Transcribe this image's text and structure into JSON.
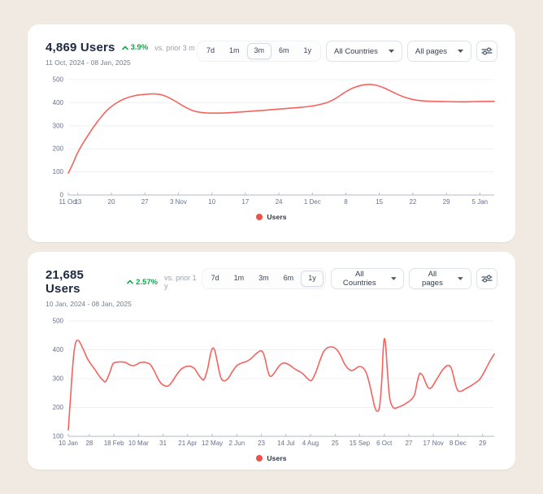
{
  "page": {
    "background": "#f0eae3"
  },
  "colors": {
    "line": "#f4635e",
    "legend_dot": "#f0504b",
    "positive": "#17a24c",
    "axis": "#b3bac6",
    "grid": "#eef0f4",
    "tick_text": "#66708a"
  },
  "cards": [
    {
      "title": "4,869 Users",
      "change": "3.9%",
      "trend": "up",
      "compare_label": "vs. prior 3 m",
      "date_range": "11 Oct, 2024 - 08 Jan, 2025",
      "range_buttons": [
        "7d",
        "1m",
        "3m",
        "6m",
        "1y"
      ],
      "selected_range": "3m",
      "country_filter": "All Countries",
      "page_filter": "All pages",
      "legend": "Users",
      "chart_data": {
        "type": "line",
        "title": "",
        "xlabel": "",
        "ylabel": "",
        "grid": "horizontal",
        "legend_position": "bottom",
        "ylim": [
          0,
          500
        ],
        "y_ticks": [
          0,
          100,
          200,
          300,
          400,
          500
        ],
        "xlim": [
          0,
          89
        ],
        "x_ticks": [
          {
            "label": "11 Oct",
            "x": 0
          },
          {
            "label": "13",
            "x": 2
          },
          {
            "label": "20",
            "x": 9
          },
          {
            "label": "27",
            "x": 16
          },
          {
            "label": "3 Nov",
            "x": 23
          },
          {
            "label": "10",
            "x": 30
          },
          {
            "label": "17",
            "x": 37
          },
          {
            "label": "24",
            "x": 44
          },
          {
            "label": "1 Dec",
            "x": 51
          },
          {
            "label": "8",
            "x": 58
          },
          {
            "label": "15",
            "x": 65
          },
          {
            "label": "22",
            "x": 72
          },
          {
            "label": "29",
            "x": 79
          },
          {
            "label": "5 Jan",
            "x": 86
          }
        ],
        "series": [
          {
            "name": "Users",
            "points": [
              [
                0,
                95
              ],
              [
                1,
                138
              ],
              [
                2,
                185
              ],
              [
                4,
                255
              ],
              [
                6,
                315
              ],
              [
                8,
                365
              ],
              [
                10,
                398
              ],
              [
                12,
                419
              ],
              [
                14,
                431
              ],
              [
                16,
                436
              ],
              [
                18,
                438
              ],
              [
                20,
                431
              ],
              [
                22,
                411
              ],
              [
                24,
                386
              ],
              [
                26,
                366
              ],
              [
                28,
                357
              ],
              [
                30,
                355
              ],
              [
                33,
                356
              ],
              [
                36,
                360
              ],
              [
                39,
                364
              ],
              [
                42,
                369
              ],
              [
                45,
                374
              ],
              [
                48,
                379
              ],
              [
                51,
                386
              ],
              [
                54,
                400
              ],
              [
                56,
                420
              ],
              [
                58,
                448
              ],
              [
                60,
                468
              ],
              [
                62,
                478
              ],
              [
                64,
                477
              ],
              [
                66,
                464
              ],
              [
                68,
                444
              ],
              [
                70,
                426
              ],
              [
                72,
                414
              ],
              [
                74,
                408
              ],
              [
                76,
                406
              ],
              [
                79,
                405
              ],
              [
                82,
                404
              ],
              [
                85,
                405
              ],
              [
                89,
                406
              ]
            ]
          }
        ]
      }
    },
    {
      "title": "21,685 Users",
      "change": "2.57%",
      "trend": "up",
      "compare_label": "vs. prior 1 y",
      "date_range": "10 Jan, 2024 - 08 Jan, 2025",
      "range_buttons": [
        "7d",
        "1m",
        "3m",
        "6m",
        "1y"
      ],
      "selected_range": "1y",
      "country_filter": "All Countries",
      "page_filter": "All pages",
      "legend": "Users",
      "chart_data": {
        "type": "line",
        "title": "",
        "xlabel": "",
        "ylabel": "",
        "grid": "horizontal",
        "legend_position": "bottom",
        "ylim": [
          100,
          500
        ],
        "y_ticks": [
          100,
          200,
          300,
          400,
          500
        ],
        "xlim": [
          0,
          364
        ],
        "x_ticks": [
          {
            "label": "10 Jan",
            "x": 0
          },
          {
            "label": "28",
            "x": 18
          },
          {
            "label": "18 Feb",
            "x": 39
          },
          {
            "label": "10 Mar",
            "x": 60
          },
          {
            "label": "31",
            "x": 81
          },
          {
            "label": "21 Apr",
            "x": 102
          },
          {
            "label": "12 May",
            "x": 123
          },
          {
            "label": "2 Jun",
            "x": 144
          },
          {
            "label": "23",
            "x": 165
          },
          {
            "label": "14 Jul",
            "x": 186
          },
          {
            "label": "4 Aug",
            "x": 207
          },
          {
            "label": "25",
            "x": 228
          },
          {
            "label": "15 Sep",
            "x": 249
          },
          {
            "label": "6 Oct",
            "x": 270
          },
          {
            "label": "27",
            "x": 291
          },
          {
            "label": "17 Nov",
            "x": 312
          },
          {
            "label": "8 Dec",
            "x": 333
          },
          {
            "label": "29",
            "x": 354
          }
        ],
        "series": [
          {
            "name": "Users",
            "points": [
              [
                0,
                122
              ],
              [
                2,
                240
              ],
              [
                4,
                355
              ],
              [
                6,
                420
              ],
              [
                8,
                433
              ],
              [
                10,
                425
              ],
              [
                13,
                400
              ],
              [
                16,
                372
              ],
              [
                19,
                352
              ],
              [
                23,
                330
              ],
              [
                27,
                306
              ],
              [
                30,
                293
              ],
              [
                32,
                290
              ],
              [
                35,
                316
              ],
              [
                38,
                350
              ],
              [
                41,
                357
              ],
              [
                45,
                358
              ],
              [
                49,
                356
              ],
              [
                52,
                349
              ],
              [
                55,
                345
              ],
              [
                58,
                348
              ],
              [
                61,
                355
              ],
              [
                64,
                357
              ],
              [
                67,
                355
              ],
              [
                70,
                349
              ],
              [
                73,
                330
              ],
              [
                76,
                305
              ],
              [
                79,
                285
              ],
              [
                82,
                276
              ],
              [
                85,
                274
              ],
              [
                88,
                285
              ],
              [
                92,
                310
              ],
              [
                96,
                331
              ],
              [
                100,
                341
              ],
              [
                104,
                343
              ],
              [
                108,
                334
              ],
              [
                111,
                315
              ],
              [
                114,
                300
              ],
              [
                116,
                297
              ],
              [
                119,
                333
              ],
              [
                121,
                375
              ],
              [
                123,
                404
              ],
              [
                125,
                400
              ],
              [
                127,
                365
              ],
              [
                129,
                325
              ],
              [
                131,
                298
              ],
              [
                134,
                293
              ],
              [
                137,
                303
              ],
              [
                140,
                323
              ],
              [
                144,
                345
              ],
              [
                148,
                354
              ],
              [
                152,
                359
              ],
              [
                156,
                369
              ],
              [
                159,
                381
              ],
              [
                162,
                391
              ],
              [
                164,
                396
              ],
              [
                166,
                393
              ],
              [
                168,
                372
              ],
              [
                170,
                335
              ],
              [
                172,
                310
              ],
              [
                174,
                310
              ],
              [
                177,
                325
              ],
              [
                180,
                343
              ],
              [
                183,
                353
              ],
              [
                186,
                353
              ],
              [
                189,
                347
              ],
              [
                192,
                338
              ],
              [
                195,
                330
              ],
              [
                198,
                324
              ],
              [
                201,
                315
              ],
              [
                204,
                302
              ],
              [
                207,
                293
              ],
              [
                209,
                300
              ],
              [
                212,
                327
              ],
              [
                215,
                362
              ],
              [
                218,
                392
              ],
              [
                221,
                406
              ],
              [
                224,
                410
              ],
              [
                227,
                408
              ],
              [
                230,
                398
              ],
              [
                233,
                378
              ],
              [
                236,
                352
              ],
              [
                239,
                335
              ],
              [
                242,
                328
              ],
              [
                245,
                333
              ],
              [
                248,
                341
              ],
              [
                251,
                340
              ],
              [
                254,
                326
              ],
              [
                256,
                303
              ],
              [
                258,
                272
              ],
              [
                260,
                235
              ],
              [
                262,
                200
              ],
              [
                264,
                187
              ],
              [
                266,
                203
              ],
              [
                268,
                300
              ],
              [
                269,
                390
              ],
              [
                270,
                437
              ],
              [
                271,
                425
              ],
              [
                272,
                370
              ],
              [
                273,
                310
              ],
              [
                274,
                258
              ],
              [
                275,
                225
              ],
              [
                277,
                203
              ],
              [
                279,
                197
              ],
              [
                282,
                201
              ],
              [
                286,
                208
              ],
              [
                290,
                218
              ],
              [
                293,
                227
              ],
              [
                296,
                245
              ],
              [
                298,
                285
              ],
              [
                300,
                315
              ],
              [
                301,
                318
              ],
              [
                303,
                310
              ],
              [
                305,
                290
              ],
              [
                307,
                272
              ],
              [
                309,
                266
              ],
              [
                311,
                272
              ],
              [
                314,
                292
              ],
              [
                317,
                312
              ],
              [
                320,
                331
              ],
              [
                323,
                343
              ],
              [
                325,
                346
              ],
              [
                327,
                339
              ],
              [
                329,
                312
              ],
              [
                331,
                278
              ],
              [
                333,
                258
              ],
              [
                336,
                257
              ],
              [
                340,
                266
              ],
              [
                344,
                275
              ],
              [
                348,
                286
              ],
              [
                351,
                295
              ],
              [
                354,
                312
              ],
              [
                357,
                335
              ],
              [
                360,
                358
              ],
              [
                362,
                372
              ],
              [
                364,
                385
              ]
            ]
          }
        ]
      }
    }
  ]
}
